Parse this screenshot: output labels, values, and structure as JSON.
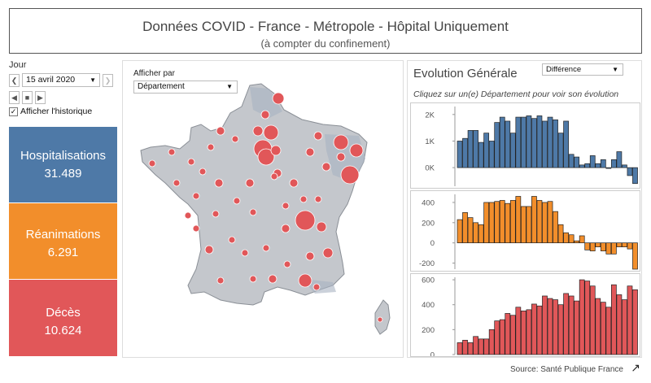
{
  "header": {
    "title": "Données COVID - France - Métropole - Hôpital Uniquement",
    "subtitle": "(à compter du confinement)"
  },
  "controls": {
    "jour_label": "Jour",
    "date_value": "15 avril 2020",
    "prev_icon": "chevron-left-icon",
    "next_icon": "chevron-right-icon",
    "history_checkbox_label": "Afficher l'historique",
    "history_checked": true
  },
  "kpis": [
    {
      "label": "Hospitalisations",
      "value": "31.489",
      "color": "#4e79a7"
    },
    {
      "label": "Réanimations",
      "value": "6.291",
      "color": "#f28e2b"
    },
    {
      "label": "Décès",
      "value": "10.624",
      "color": "#e15759"
    }
  ],
  "map": {
    "display_by_label": "Afficher par",
    "display_by_value": "Département",
    "marker_color": "#e15759"
  },
  "evolution": {
    "title": "Evolution Générale",
    "mode_value": "Différence",
    "hint": "Cliquez sur un(e) Département pour voir son évolution"
  },
  "chart_data": [
    {
      "type": "bar",
      "name": "Hospitalisations",
      "color": "#4e79a7",
      "ylim": [
        -700,
        2300
      ],
      "tick_values": [
        2000,
        1000,
        0
      ],
      "tick_labels": [
        "2K",
        "1K",
        "0K"
      ],
      "values": [
        1000,
        1100,
        1400,
        1400,
        950,
        1300,
        1000,
        1700,
        1900,
        1750,
        1300,
        1900,
        1900,
        1950,
        1850,
        1950,
        1750,
        1900,
        1800,
        1300,
        1750,
        500,
        400,
        100,
        150,
        450,
        150,
        300,
        0,
        300,
        600,
        100,
        -300,
        -600
      ]
    },
    {
      "type": "bar",
      "name": "Réanimations",
      "color": "#f28e2b",
      "ylim": [
        -260,
        480
      ],
      "tick_values": [
        400,
        200,
        0,
        -200
      ],
      "tick_labels": [
        "400",
        "200",
        "0",
        "-200"
      ],
      "values": [
        230,
        300,
        250,
        200,
        180,
        400,
        400,
        410,
        420,
        390,
        420,
        460,
        360,
        360,
        460,
        420,
        400,
        410,
        310,
        180,
        100,
        80,
        20,
        70,
        -70,
        -80,
        -40,
        -80,
        -110,
        -110,
        -40,
        -40,
        -60,
        -260
      ]
    },
    {
      "type": "bar",
      "name": "Décès",
      "color": "#e15759",
      "ylim": [
        0,
        620
      ],
      "tick_values": [
        600,
        400,
        200,
        0
      ],
      "tick_labels": [
        "600",
        "400",
        "200",
        "0"
      ],
      "values": [
        95,
        115,
        95,
        145,
        125,
        125,
        200,
        270,
        280,
        330,
        315,
        380,
        350,
        360,
        405,
        390,
        470,
        450,
        440,
        400,
        490,
        470,
        430,
        600,
        590,
        550,
        450,
        420,
        380,
        560,
        480,
        440,
        550,
        520
      ]
    }
  ],
  "footer": {
    "source": "Source: Santé Publique France",
    "share_icon": "share-icon"
  }
}
